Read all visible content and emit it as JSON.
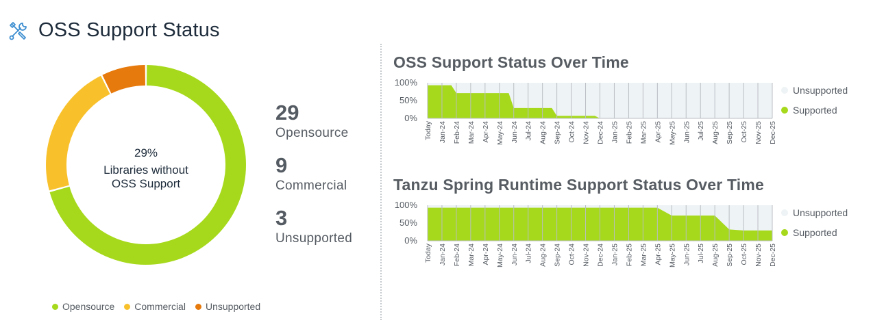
{
  "header": {
    "title": "OSS Support Status",
    "icon": "tools-icon"
  },
  "colors": {
    "opensource": "#a6d91b",
    "commercial": "#f8c12c",
    "unsupported": "#e77a0c",
    "unsupported_area": "#eef3f5",
    "supported_area": "#a6d91b"
  },
  "donut": {
    "center_percent": "29%",
    "center_line1": "Libraries without",
    "center_line2": "OSS Support"
  },
  "stats": [
    {
      "value": "29",
      "label": "Opensource"
    },
    {
      "value": "9",
      "label": "Commercial"
    },
    {
      "value": "3",
      "label": "Unsupported"
    }
  ],
  "legend": [
    "Opensource",
    "Commercial",
    "Unsupported"
  ],
  "chart_data": [
    {
      "type": "pie",
      "categories": [
        "Opensource",
        "Commercial",
        "Unsupported"
      ],
      "values": [
        29,
        9,
        3
      ],
      "colors": [
        "#a6d91b",
        "#f8c12c",
        "#e77a0c"
      ]
    },
    {
      "type": "area",
      "title": "OSS Support Status Over Time",
      "categories": [
        "Today",
        "Jan-24",
        "Feb-24",
        "Mar-24",
        "Apr-24",
        "May-24",
        "Jun-24",
        "Jul-24",
        "Aug-24",
        "Sep-24",
        "Oct-24",
        "Nov-24",
        "Dec-24",
        "Jan-25",
        "Feb-25",
        "Mar-25",
        "Apr-25",
        "May-25",
        "Jun-25",
        "Jul-25",
        "Aug-25",
        "Sep-25",
        "Oct-25",
        "Nov-25",
        "Dec-25"
      ],
      "yticks": [
        "100%",
        "50%",
        "0%"
      ],
      "ylim": [
        0,
        100
      ],
      "series": [
        {
          "name": "Unsupported",
          "values": [
            7,
            7,
            29,
            29,
            29,
            29,
            71,
            71,
            71,
            93,
            93,
            93,
            100,
            100,
            100,
            100,
            100,
            100,
            100,
            100,
            100,
            100,
            100,
            100,
            100
          ]
        },
        {
          "name": "Supported",
          "values": [
            93,
            93,
            71,
            71,
            71,
            71,
            29,
            29,
            29,
            7,
            7,
            7,
            0,
            0,
            0,
            0,
            0,
            0,
            0,
            0,
            0,
            0,
            0,
            0,
            0
          ]
        }
      ],
      "step": true
    },
    {
      "type": "area",
      "title": "Tanzu Spring Runtime Support Status Over Time",
      "categories": [
        "Today",
        "Jan-24",
        "Feb-24",
        "Mar-24",
        "Apr-24",
        "May-24",
        "Jun-24",
        "Jul-24",
        "Aug-24",
        "Sep-24",
        "Oct-24",
        "Nov-24",
        "Dec-24",
        "Jan-25",
        "Feb-25",
        "Mar-25",
        "Apr-25",
        "May-25",
        "Jun-25",
        "Jul-25",
        "Aug-25",
        "Sep-25",
        "Oct-25",
        "Nov-25",
        "Dec-25"
      ],
      "yticks": [
        "100%",
        "50%",
        "0%"
      ],
      "ylim": [
        0,
        100
      ],
      "series": [
        {
          "name": "Unsupported",
          "values": [
            7,
            7,
            7,
            7,
            7,
            7,
            7,
            7,
            7,
            7,
            7,
            7,
            7,
            7,
            7,
            7,
            7,
            29,
            29,
            29,
            29,
            68,
            71,
            71,
            71
          ]
        },
        {
          "name": "Supported",
          "values": [
            93,
            93,
            93,
            93,
            93,
            93,
            93,
            93,
            93,
            93,
            93,
            93,
            93,
            93,
            93,
            93,
            93,
            71,
            71,
            71,
            71,
            32,
            29,
            29,
            29
          ]
        }
      ],
      "step": false
    }
  ]
}
